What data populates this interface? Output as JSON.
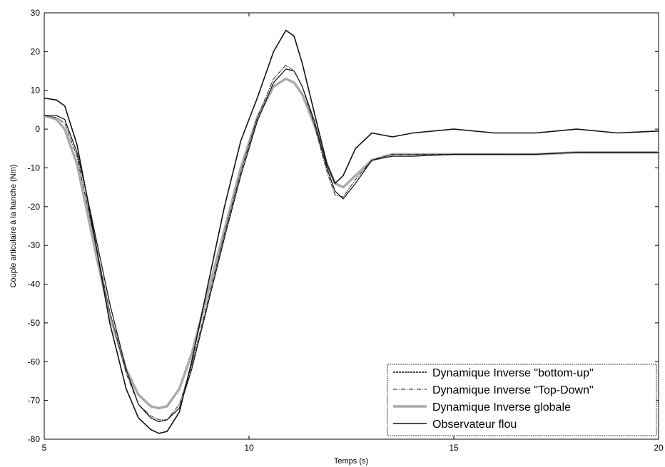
{
  "chart_data": {
    "type": "line",
    "title": "",
    "xlabel": "Temps (s)",
    "ylabel": "Couple articulaire à la hanche (Nm)",
    "xlim": [
      5,
      20
    ],
    "ylim": [
      -80,
      30
    ],
    "xticks": [
      5,
      10,
      15,
      20
    ],
    "yticks": [
      -80,
      -70,
      -60,
      -50,
      -40,
      -30,
      -20,
      -10,
      0,
      10,
      20,
      30
    ],
    "grid": false,
    "legend_position": "bottom-right",
    "series": [
      {
        "name": "Dynamique Inverse \"bottom-up\"",
        "color": "#111111",
        "style": "dashed",
        "x": [
          5,
          5.3,
          5.5,
          5.8,
          6,
          6.3,
          6.6,
          7,
          7.3,
          7.6,
          7.8,
          8,
          8.3,
          8.6,
          9,
          9.4,
          9.8,
          10.2,
          10.6,
          10.9,
          11.1,
          11.3,
          11.6,
          11.9,
          12.1,
          12.3,
          12.6,
          13,
          13.5,
          14,
          15,
          16,
          17,
          18,
          19,
          20
        ],
        "y": [
          3.5,
          3.5,
          2.5,
          -6,
          -15,
          -30,
          -45,
          -62,
          -71,
          -74.5,
          -75.5,
          -75,
          -72,
          -62,
          -45,
          -28,
          -12,
          2,
          12,
          15.5,
          15,
          11,
          2,
          -10,
          -16,
          -18,
          -14,
          -8,
          -7,
          -7,
          -6.5,
          -6.5,
          -6.5,
          -6,
          -6,
          -6
        ]
      },
      {
        "name": "Dynamique Inverse \"Top-Down\"",
        "color": "#111111",
        "style": "dashdot",
        "x": [
          5,
          5.3,
          5.5,
          5.8,
          6,
          6.3,
          6.6,
          7,
          7.3,
          7.6,
          7.8,
          8,
          8.3,
          8.6,
          9,
          9.4,
          9.8,
          10.2,
          10.6,
          10.9,
          11.1,
          11.3,
          11.6,
          11.9,
          12.1,
          12.3,
          12.6,
          13,
          13.5,
          14,
          15,
          16,
          17,
          18,
          19,
          20
        ],
        "y": [
          3.5,
          3,
          1.5,
          -7,
          -17,
          -32,
          -47,
          -63,
          -71,
          -74,
          -75,
          -75,
          -71,
          -61,
          -44,
          -27,
          -11,
          3,
          13,
          16.5,
          15,
          11,
          1,
          -11,
          -17,
          -17.5,
          -13,
          -8,
          -6.5,
          -6.5,
          -6.5,
          -6.5,
          -6.5,
          -6,
          -6,
          -6
        ]
      },
      {
        "name": "Dynamique Inverse globale",
        "color": "#aaaaaa",
        "style": "solid-thick",
        "x": [
          5,
          5.3,
          5.5,
          5.8,
          6,
          6.3,
          6.6,
          7,
          7.3,
          7.6,
          7.8,
          8,
          8.3,
          8.6,
          9,
          9.4,
          9.8,
          10.2,
          10.6,
          10.9,
          11.1,
          11.3,
          11.6,
          11.9,
          12.1,
          12.3,
          12.6,
          13,
          13.5,
          14,
          15,
          16,
          17,
          18,
          19,
          20
        ],
        "y": [
          3.5,
          2.5,
          0,
          -9,
          -19,
          -34,
          -48,
          -62,
          -68.5,
          -71.5,
          -72,
          -71.5,
          -67,
          -58,
          -42,
          -26,
          -10,
          3,
          11,
          13,
          12,
          9,
          1,
          -9,
          -14,
          -15,
          -12,
          -8,
          -6.5,
          -6.5,
          -6.5,
          -6.5,
          -6.5,
          -6,
          -6,
          -6
        ]
      },
      {
        "name": "Observateur flou",
        "color": "#111111",
        "style": "solid",
        "x": [
          5,
          5.3,
          5.5,
          5.8,
          6,
          6.3,
          6.6,
          7,
          7.3,
          7.6,
          7.8,
          8,
          8.3,
          8.6,
          9,
          9.4,
          9.8,
          10.2,
          10.6,
          10.9,
          11.1,
          11.3,
          11.6,
          11.9,
          12.1,
          12.3,
          12.6,
          13,
          13.5,
          14,
          15,
          16,
          17,
          18,
          19,
          20
        ],
        "y": [
          8,
          7.5,
          6,
          -4,
          -15,
          -32,
          -50,
          -67,
          -74.5,
          -77.5,
          -78.5,
          -78,
          -73,
          -60,
          -40,
          -20,
          -3,
          8,
          20,
          25.5,
          24,
          17,
          4,
          -9,
          -14,
          -12,
          -5,
          -1,
          -2,
          -1,
          0,
          -1,
          -1,
          0,
          -1,
          -0.5
        ]
      }
    ]
  }
}
